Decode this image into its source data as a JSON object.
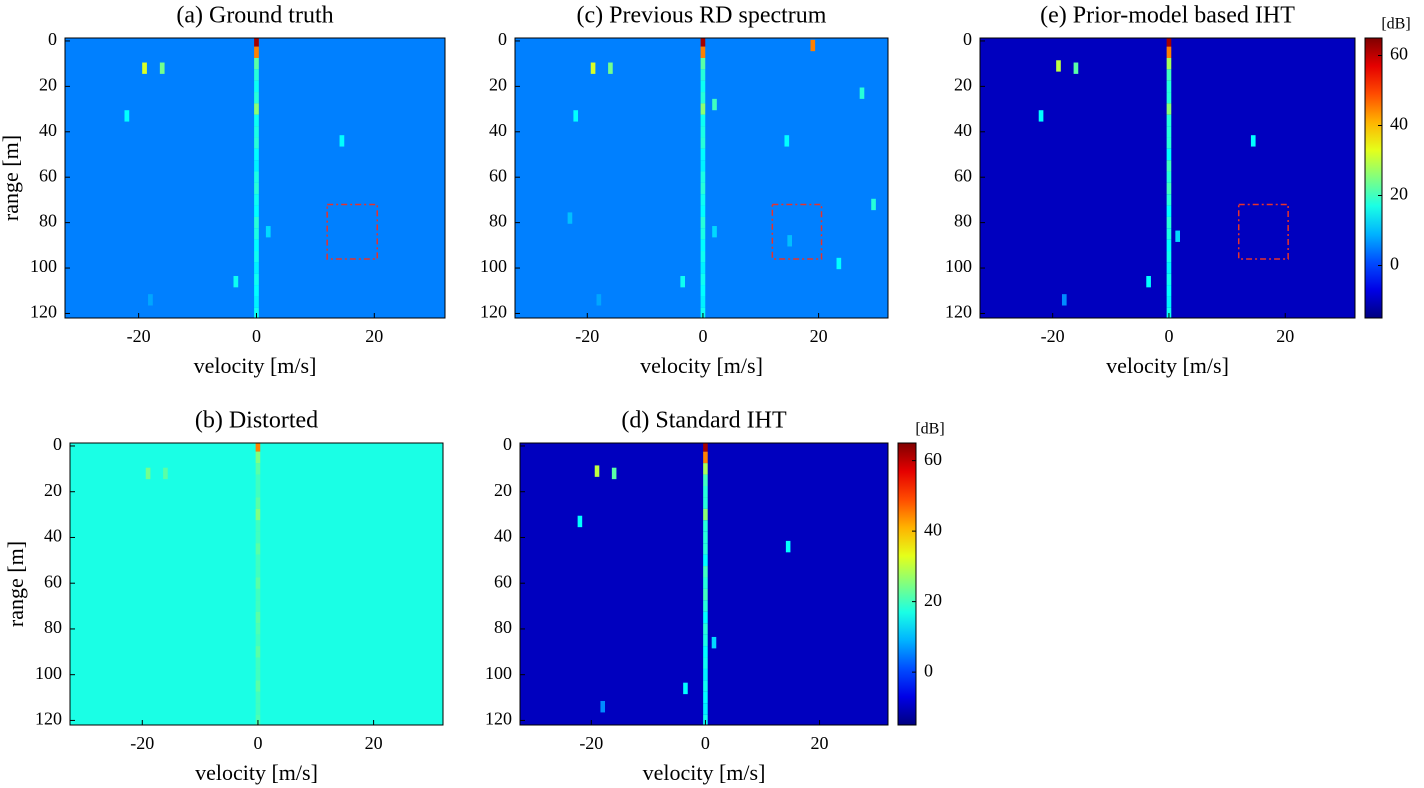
{
  "chart_data": [
    {
      "type": "heatmap",
      "title": "(a) Ground truth",
      "xlabel": "velocity [m/s]",
      "ylabel": "range [m]",
      "xlim": [
        -32.5,
        32
      ],
      "ylim": [
        -1.3,
        122
      ],
      "xticks": [
        -20,
        0,
        20
      ],
      "yticks": [
        0,
        20,
        40,
        60,
        80,
        100,
        120
      ],
      "clim": [
        -15,
        65
      ],
      "background": 5,
      "x": [
        0,
        0,
        0,
        0,
        0,
        0,
        0,
        0,
        0,
        0,
        0,
        0,
        0,
        0,
        0,
        0,
        0,
        0,
        0,
        0,
        0,
        0,
        0,
        0,
        0,
        -19,
        -16,
        -22,
        14.5,
        2,
        -3.5,
        -18
      ],
      "y": [
        0,
        5,
        10,
        15,
        20,
        25,
        30,
        35,
        40,
        45,
        50,
        55,
        60,
        65,
        70,
        75,
        80,
        85,
        90,
        95,
        100,
        105,
        110,
        115,
        120,
        12,
        12,
        33,
        44,
        84,
        106,
        114
      ],
      "values": [
        62,
        45,
        22,
        18,
        16,
        18,
        26,
        16,
        17,
        18,
        15,
        14,
        17,
        18,
        16,
        15,
        18,
        17,
        15,
        16,
        14,
        16,
        15,
        14,
        16,
        32,
        24,
        15,
        15,
        12,
        16,
        8
      ],
      "box": {
        "x": [
          12,
          20.5
        ],
        "y": [
          72,
          96
        ]
      }
    },
    {
      "type": "heatmap",
      "title": "(b) Distorted",
      "xlabel": "velocity [m/s]",
      "ylabel": "range [m]",
      "xlim": [
        -32.5,
        32
      ],
      "ylim": [
        -1.3,
        122
      ],
      "xticks": [
        -20,
        0,
        20
      ],
      "yticks": [
        0,
        20,
        40,
        60,
        80,
        100,
        120
      ],
      "clim": [
        -15,
        65
      ],
      "background": 17,
      "x": [
        0,
        0,
        0,
        0,
        0,
        0,
        0,
        0,
        0,
        0,
        0,
        0,
        0,
        0,
        0,
        0,
        0,
        0,
        0,
        0,
        0,
        0,
        0,
        0,
        0,
        -19,
        -16
      ],
      "y": [
        0,
        5,
        10,
        15,
        20,
        25,
        30,
        35,
        40,
        45,
        50,
        55,
        60,
        65,
        70,
        75,
        80,
        85,
        90,
        95,
        100,
        105,
        110,
        115,
        120,
        12,
        12
      ],
      "values": [
        45,
        25,
        22,
        20,
        20,
        22,
        25,
        20,
        20,
        22,
        20,
        20,
        22,
        20,
        20,
        22,
        21,
        20,
        22,
        20,
        20,
        22,
        20,
        20,
        21,
        24,
        22
      ]
    },
    {
      "type": "heatmap",
      "title": "(c) Previous RD spectrum",
      "xlabel": "velocity [m/s]",
      "xlim": [
        -32.5,
        32
      ],
      "ylim": [
        -1.3,
        122
      ],
      "xticks": [
        -20,
        0,
        20
      ],
      "yticks": [
        0,
        20,
        40,
        60,
        80,
        100,
        120
      ],
      "clim": [
        -15,
        65
      ],
      "background": 5,
      "x": [
        0,
        0,
        0,
        0,
        0,
        0,
        0,
        0,
        0,
        0,
        0,
        0,
        0,
        0,
        0,
        0,
        0,
        0,
        0,
        0,
        0,
        0,
        0,
        0,
        0,
        -19,
        -16,
        -22,
        14.5,
        2,
        -3.5,
        -18,
        19,
        2,
        27.5,
        -23,
        29.5,
        23.5,
        15
      ],
      "y": [
        0,
        5,
        10,
        15,
        20,
        25,
        30,
        35,
        40,
        45,
        50,
        55,
        60,
        65,
        70,
        75,
        80,
        85,
        90,
        95,
        100,
        105,
        110,
        115,
        120,
        12,
        12,
        33,
        44,
        84,
        106,
        114,
        2,
        28,
        23,
        78,
        72,
        98,
        88
      ],
      "values": [
        62,
        45,
        22,
        18,
        16,
        18,
        26,
        16,
        17,
        18,
        15,
        14,
        17,
        18,
        16,
        15,
        18,
        17,
        15,
        16,
        14,
        16,
        15,
        14,
        16,
        32,
        24,
        15,
        15,
        12,
        16,
        8,
        45,
        20,
        18,
        10,
        18,
        15,
        10
      ],
      "box": {
        "x": [
          12,
          20.5
        ],
        "y": [
          72,
          96
        ]
      }
    },
    {
      "type": "heatmap",
      "title": "(d) Standard IHT",
      "xlabel": "velocity [m/s]",
      "xlim": [
        -32.5,
        32
      ],
      "ylim": [
        -1.3,
        122
      ],
      "xticks": [
        -20,
        0,
        20
      ],
      "yticks": [
        0,
        20,
        40,
        60,
        80,
        100,
        120
      ],
      "clim": [
        -15,
        65
      ],
      "background": -10,
      "clabel": "[dB]",
      "cticks": [
        0,
        20,
        40,
        60
      ],
      "x": [
        0,
        0,
        0,
        0,
        0,
        0,
        0,
        0,
        0,
        0,
        0,
        0,
        0,
        0,
        0,
        0,
        0,
        0,
        0,
        0,
        0,
        0,
        0,
        0,
        0,
        -19,
        -16,
        -22,
        14.5,
        1.5,
        -3.5,
        -18
      ],
      "y": [
        0,
        5,
        10,
        15,
        20,
        25,
        30,
        35,
        40,
        45,
        50,
        55,
        60,
        65,
        70,
        75,
        80,
        85,
        90,
        95,
        100,
        105,
        110,
        115,
        120,
        11,
        12,
        33,
        44,
        86,
        106,
        114
      ],
      "values": [
        62,
        45,
        28,
        20,
        18,
        18,
        26,
        18,
        18,
        18,
        15,
        20,
        18,
        20,
        18,
        15,
        18,
        17,
        15,
        16,
        14,
        16,
        15,
        14,
        16,
        30,
        22,
        15,
        15,
        12,
        15,
        6
      ]
    },
    {
      "type": "heatmap",
      "title": "(e) Prior-model based IHT",
      "xlabel": "velocity [m/s]",
      "xlim": [
        -32.5,
        32
      ],
      "ylim": [
        -1.3,
        122
      ],
      "xticks": [
        -20,
        0,
        20
      ],
      "yticks": [
        0,
        20,
        40,
        60,
        80,
        100,
        120
      ],
      "clim": [
        -15,
        65
      ],
      "background": -10,
      "clabel": "[dB]",
      "cticks": [
        0,
        20,
        40,
        60
      ],
      "x": [
        0,
        0,
        0,
        0,
        0,
        0,
        0,
        0,
        0,
        0,
        0,
        0,
        0,
        0,
        0,
        0,
        0,
        0,
        0,
        0,
        0,
        0,
        0,
        0,
        0,
        -19,
        -16,
        -22,
        14.5,
        1.5,
        -3.5,
        -18
      ],
      "y": [
        0,
        5,
        10,
        15,
        20,
        25,
        30,
        35,
        40,
        45,
        50,
        55,
        60,
        65,
        70,
        75,
        80,
        85,
        90,
        95,
        100,
        105,
        110,
        115,
        120,
        11,
        12,
        33,
        44,
        86,
        106,
        114
      ],
      "values": [
        62,
        45,
        28,
        20,
        18,
        18,
        26,
        18,
        18,
        18,
        15,
        20,
        18,
        20,
        18,
        15,
        18,
        17,
        15,
        16,
        14,
        16,
        15,
        14,
        16,
        30,
        22,
        15,
        15,
        12,
        15,
        6
      ],
      "box": {
        "x": [
          12,
          20.5
        ],
        "y": [
          72,
          96
        ]
      }
    }
  ]
}
